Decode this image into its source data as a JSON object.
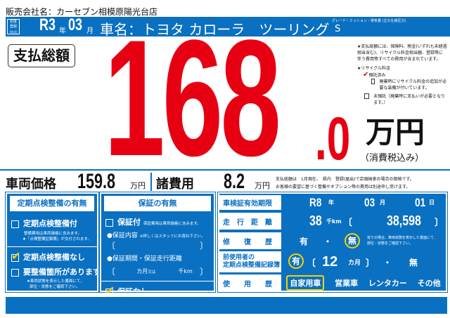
{
  "dealer": "販売会社名：カーセブン相模原陽光台店",
  "header": {
    "first_reg_label": [
      "初度",
      "登録",
      "(年式)"
    ],
    "era_year": "R3",
    "year_unit": "年",
    "month": "03",
    "month_unit": "月",
    "car_name": "車名：トヨタ カローラ　ツーリング",
    "grade_label": "グレード・ミッション・排気量 (主な仕様区分)",
    "grade": "S"
  },
  "total": {
    "label": "支払総額",
    "integer": "168",
    "decimal": ".0",
    "unit": "万円",
    "tax": "（消費税込み）"
  },
  "notes": {
    "note1": "★支払総額には、保険料、税金(いずれも未経過相当含む)、リサイクル料金相当額、登録等に伴う費用等すべての費用が含まれています。",
    "recycle_title": "★リサイクル料金",
    "deposited": "預託済み",
    "deposited_checked": true,
    "extra": "廃棄時にリサイクル料金の追加が必要な装備が付いています。",
    "not_deposited": "未預託（廃棄時に支払いが必要となります。）"
  },
  "prices": {
    "vehicle_label": "車両価格",
    "vehicle_value": "159.8",
    "vehicle_unit": "万円",
    "fees_label": "諸費用",
    "fees_value": "8.2",
    "fees_unit": "万円",
    "note_line1": "支払総額は　1月現在、　県内　登録(届出)で店頭納車の場合の価格です。",
    "note_line2": "お客様の要望に基づく整備やオプション等の費用は別途申し受けます。"
  },
  "inspection": {
    "title": "定期点検整備の有無",
    "with": "定期点検整備付",
    "with_checked": false,
    "with_note1": "整備費用は車両価格に含みます。",
    "with_note2": "★「点検整備記録簿」が交付されます。",
    "without": "定期点検整備なし",
    "without_checked": true,
    "needs": "要整備箇所があります",
    "needs_checked": false,
    "needs_note1": "★車両状態を表示した書面にて、",
    "needs_note2": "部位・状態をご確認下さい。"
  },
  "warranty": {
    "title": "保証の有無",
    "with": "保証付",
    "with_checked": false,
    "with_note": "保証費用は車両価格に含みます。",
    "content_label": "●保証内容",
    "content_note": "※詳しくはスタッフにお尋ね下さい。",
    "period_label": "●保証期間・保証走行距離",
    "months_unit": "カ月",
    "or": "又は",
    "km_unit": "千km",
    "none": "保証なし",
    "none_checked": true
  },
  "details": {
    "shaken_label": "車検証有効期限",
    "shaken_year": "R8",
    "shaken_year_unit": "年",
    "shaken_month": "03",
    "shaken_month_unit": "月",
    "shaken_day": "01",
    "shaken_day_unit": "日",
    "mileage_label": "走　行　距　離",
    "mileage_k": "38",
    "mileage_k_unit": "千km",
    "mileage_exact": "38,598",
    "repair_label": "修　　復　　歴",
    "repair_yes": "有",
    "repair_dot": "・",
    "repair_no": "無",
    "repair_selected": "無",
    "repair_note1": "有りの場合、車両状態を表示した書面にて、",
    "repair_note2": "部位・状態をご確認下さい。",
    "record_label1": "前使用者の",
    "record_label2": "定期点検整備記録簿",
    "record_yes": "有",
    "record_months": "12",
    "record_months_unit": "カ月",
    "record_no": "無",
    "record_selected": "有",
    "usage_label": "使　　用　　歴",
    "usage_options": [
      "自家用車",
      "営業車",
      "レンタカー",
      "その他"
    ],
    "usage_selected": "自家用車"
  },
  "colors": {
    "blue": "#0a70c1",
    "red": "#e60012",
    "highlight": "#f5d300"
  }
}
